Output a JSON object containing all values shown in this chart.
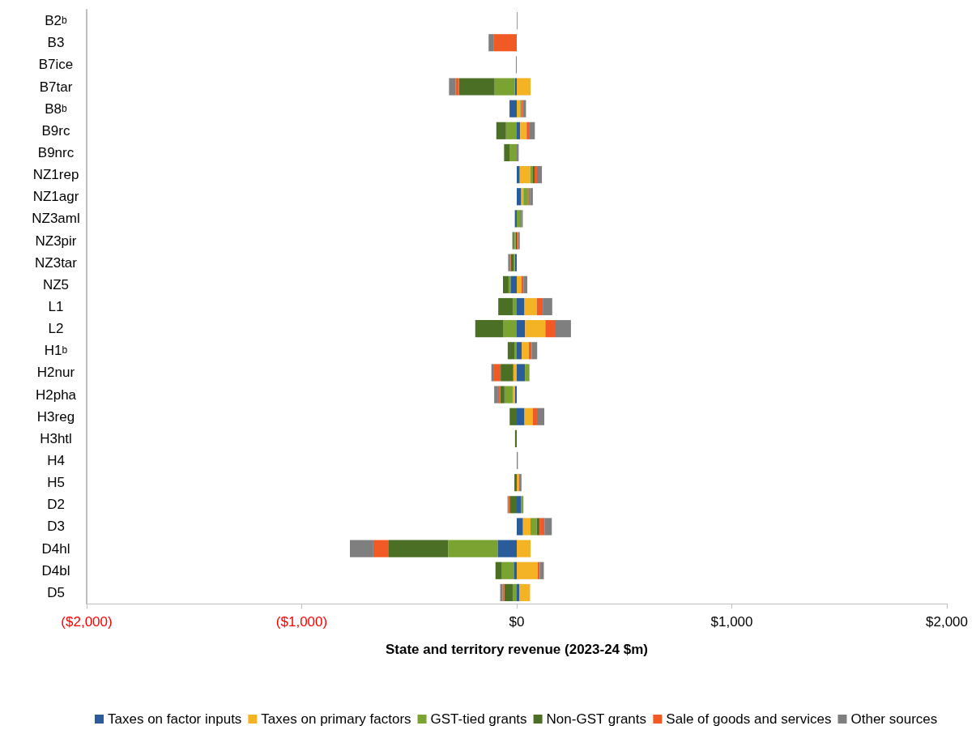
{
  "chart_data": {
    "type": "bar",
    "orientation": "horizontal",
    "stacked": true,
    "xlabel": "State and territory revenue (2023-24 $m)",
    "categories": [
      "B2$^{b}$",
      "B3",
      "B7ice",
      "B7tar",
      "B8$^{b}$",
      "B9rc",
      "B9nrc",
      "NZ1rep",
      "NZ1agr",
      "NZ3aml",
      "NZ3pir",
      "NZ3tar",
      "NZ5",
      "L1",
      "L2",
      "H1$^{b}$",
      "H2nur",
      "H2pha",
      "H3reg",
      "H3htl",
      "H4",
      "H5",
      "D2",
      "D3",
      "D4hl",
      "D4bl",
      "D5"
    ],
    "series": [
      {
        "name": "Taxes on factor inputs",
        "color": "#2a5b9b",
        "values": [
          null,
          null,
          null,
          -9,
          -30,
          16,
          null,
          14,
          21,
          -9,
          -5,
          -9,
          -29,
          36,
          39,
          23,
          38,
          -9,
          36,
          null,
          null,
          null,
          21,
          29,
          -89,
          -14,
          13
        ]
      },
      {
        "name": "Taxes on primary factors",
        "color": "#f4b225",
        "values": [
          null,
          null,
          null,
          64,
          16,
          30,
          null,
          49,
          10,
          null,
          null,
          null,
          21,
          57,
          94,
          33,
          -16,
          -10,
          38,
          null,
          null,
          10,
          null,
          35,
          64,
          98,
          49
        ]
      },
      {
        "name": "GST-tied grants",
        "color": "#7aa332",
        "values": [
          null,
          null,
          -4,
          -94,
          4,
          -50,
          -34,
          10,
          20,
          16,
          -9,
          -6,
          -9,
          -19,
          -64,
          -9,
          21,
          -38,
          null,
          null,
          null,
          null,
          10,
          29,
          -230,
          -55,
          -19
        ]
      },
      {
        "name": "Non-GST grants",
        "color": "#4c6f26",
        "values": [
          null,
          null,
          null,
          -166,
          -4,
          -45,
          -25,
          10,
          4,
          4,
          -6,
          -13,
          -26,
          -67,
          -129,
          -33,
          -59,
          -20,
          -33,
          -8,
          null,
          -11,
          -33,
          13,
          -279,
          -30,
          -39
        ]
      },
      {
        "name": "Sale of goods and services",
        "color": "#f15a24",
        "values": [
          null,
          -106,
          null,
          -16,
          9,
          14,
          null,
          11,
          6,
          null,
          6,
          -6,
          10,
          28,
          44,
          13,
          -34,
          -10,
          20,
          null,
          null,
          5,
          -6,
          23,
          -69,
          9,
          -8
        ]
      },
      {
        "name": "Other sources",
        "color": "#7f7f7f",
        "values": [
          3,
          -25,
          null,
          -30,
          14,
          24,
          9,
          23,
          14,
          8,
          8,
          -6,
          18,
          44,
          75,
          26,
          -9,
          -18,
          34,
          null,
          5,
          7,
          -4,
          34,
          -109,
          19,
          -11
        ]
      }
    ],
    "xlim": [
      -2000,
      2000
    ],
    "xticks": [
      {
        "value": -2000,
        "label": "($2,000)"
      },
      {
        "value": -1000,
        "label": "($1,000)"
      },
      {
        "value": 0,
        "label": "$0"
      },
      {
        "value": 1000,
        "label": "$1,000"
      },
      {
        "value": 2000,
        "label": "$2,000"
      }
    ],
    "grid": false,
    "legend": "bottom"
  }
}
